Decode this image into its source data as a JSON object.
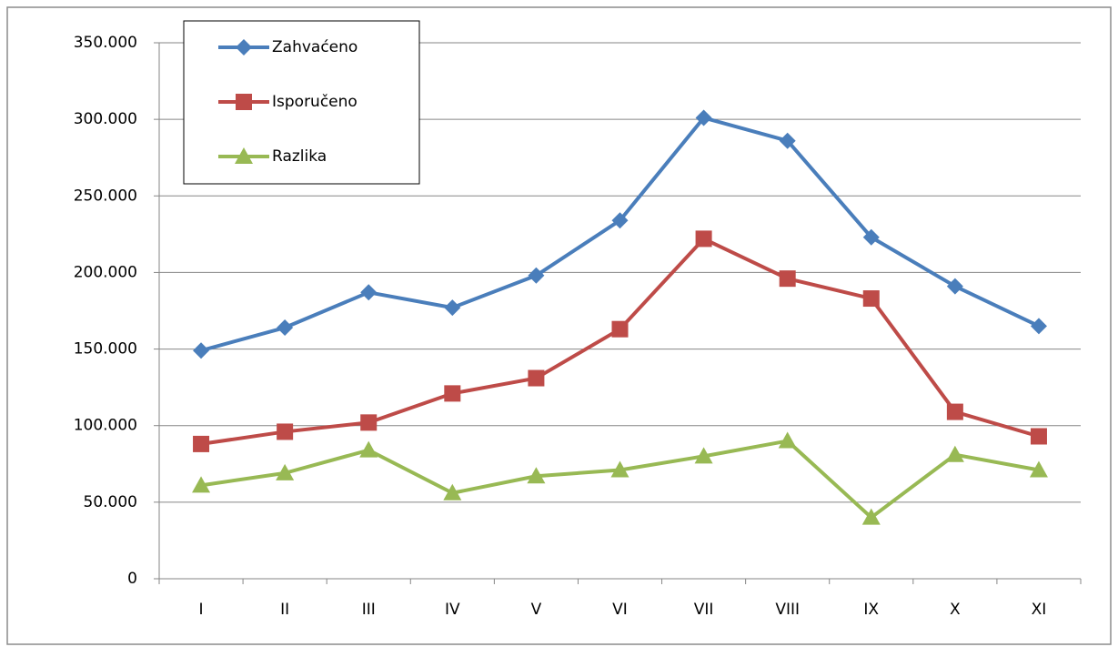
{
  "chart_data": {
    "type": "line",
    "categories": [
      "I",
      "II",
      "III",
      "IV",
      "V",
      "VI",
      "VII",
      "VIII",
      "IX",
      "X",
      "XI"
    ],
    "series": [
      {
        "name": "Zahvaćeno",
        "color": "#4a7ebb",
        "marker": "diamond",
        "values": [
          149000,
          164000,
          187000,
          177000,
          198000,
          234000,
          301000,
          286000,
          223000,
          191000,
          165000
        ]
      },
      {
        "name": "Isporučeno",
        "color": "#be4b48",
        "marker": "square",
        "values": [
          88000,
          96000,
          102000,
          121000,
          131000,
          163000,
          222000,
          196000,
          183000,
          109000,
          93000
        ]
      },
      {
        "name": "Razlika",
        "color": "#98b954",
        "marker": "triangle",
        "values": [
          61000,
          69000,
          84000,
          56000,
          67000,
          71000,
          80000,
          90000,
          40000,
          81000,
          71000
        ]
      }
    ],
    "ylim": [
      0,
      350000
    ],
    "yticks": [
      0,
      {
        "value": 50000,
        "label": "50.000"
      },
      {
        "value": 100000,
        "label": "100.000"
      },
      {
        "value": 150000,
        "label": "150.000"
      },
      {
        "value": 200000,
        "label": "200.000"
      },
      {
        "value": 250000,
        "label": "250.000"
      },
      {
        "value": 300000,
        "label": "300.000"
      },
      {
        "value": 350000,
        "label": "350.000"
      }
    ],
    "grid": true,
    "legend": "top-left"
  }
}
